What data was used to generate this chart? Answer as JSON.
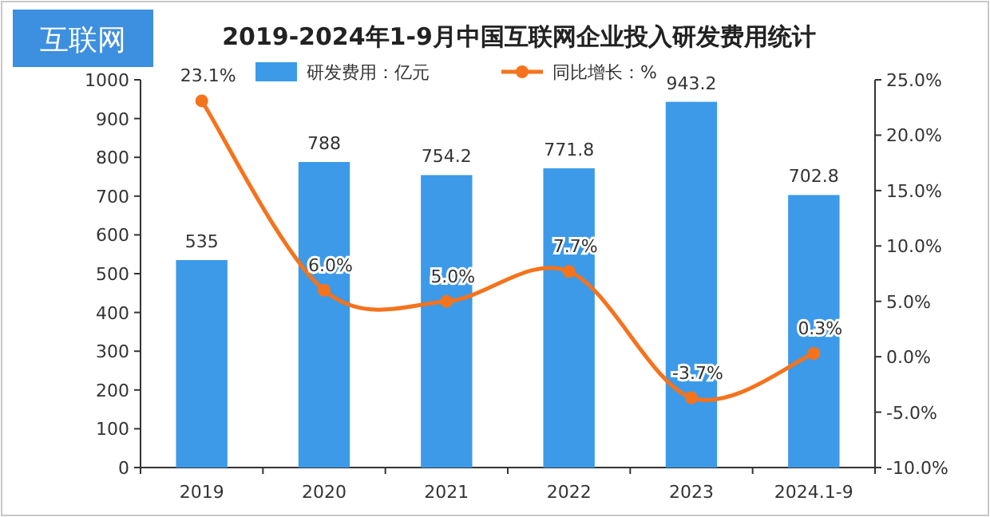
{
  "chart_data": {
    "type": "bar",
    "title": "2019-2024年1-9月中国互联网企业投入研发费用统计",
    "annotations": [
      "互联网"
    ],
    "categories": [
      "2019",
      "2020",
      "2021",
      "2022",
      "2023",
      "2024.1-9"
    ],
    "series": [
      {
        "name": "研发费用：亿元",
        "color": "#3d9ae8",
        "values": [
          535,
          788,
          754.2,
          771.8,
          943.2,
          702.8
        ],
        "value_labels": [
          "535",
          "788",
          "754.2",
          "771.8",
          "943.2",
          "702.8"
        ]
      },
      {
        "name": "同比增长：%",
        "type": "line",
        "axis": "y2",
        "color": "#f5731d",
        "marker": "circle",
        "values": [
          23.1,
          6.0,
          5.0,
          7.7,
          -3.7,
          0.3
        ],
        "value_labels": [
          "23.1%",
          "6.0%",
          "5.0%",
          "7.7%",
          "-3.7%",
          "0.3%"
        ]
      }
    ],
    "ylim": [
      0,
      1000
    ],
    "yticks": [
      0,
      100,
      200,
      300,
      400,
      500,
      600,
      700,
      800,
      900,
      1000
    ],
    "y2lim": [
      -10,
      25
    ],
    "y2ticks": [
      {
        "value": -10,
        "label": "-10.0%"
      },
      {
        "value": -5,
        "label": "-5.0%"
      },
      {
        "value": 0,
        "label": "0.0%"
      },
      {
        "value": 5,
        "label": "5.0%"
      },
      {
        "value": 10,
        "label": "10.0%"
      },
      {
        "value": 15,
        "label": "15.0%"
      },
      {
        "value": 20,
        "label": "20.0%"
      },
      {
        "value": 25,
        "label": "25.0%"
      }
    ],
    "legend": "top",
    "grid": false
  }
}
